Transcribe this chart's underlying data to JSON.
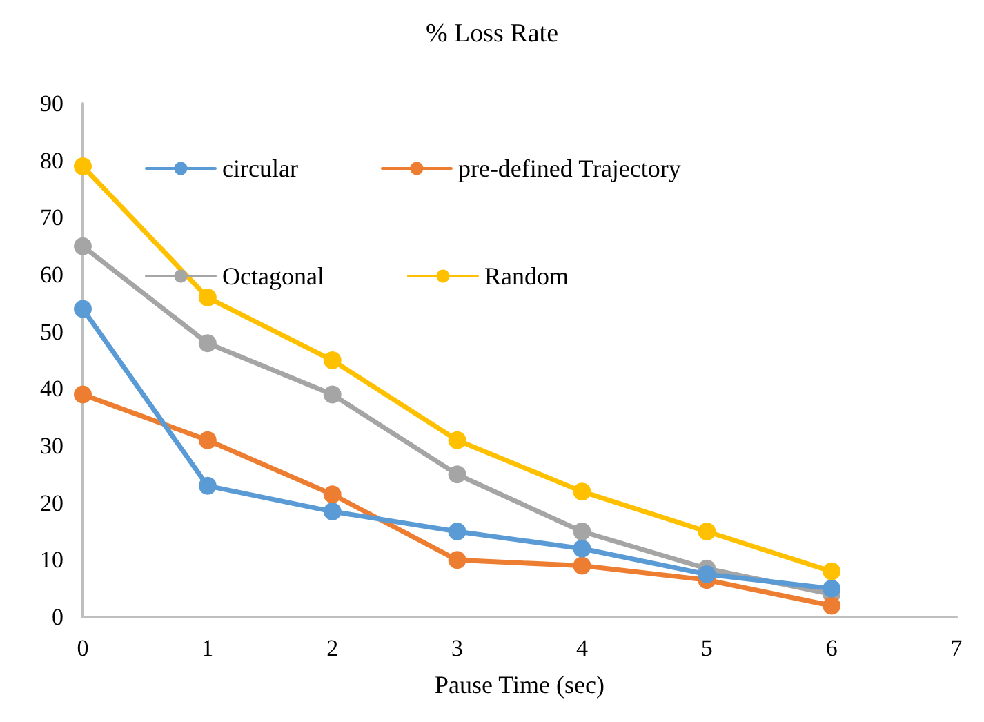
{
  "chart_data": {
    "type": "line",
    "title": "% Loss Rate",
    "xlabel": "Pause Time (sec)",
    "x": [
      0,
      1,
      2,
      3,
      4,
      5,
      6
    ],
    "xlim": [
      0,
      7
    ],
    "xticks": [
      0,
      1,
      2,
      3,
      4,
      5,
      6,
      7
    ],
    "ylim": [
      0,
      90
    ],
    "yticks": [
      0,
      10,
      20,
      30,
      40,
      50,
      60,
      70,
      80,
      90
    ],
    "grid": false,
    "legend": "top",
    "marker": "circle",
    "line_style": "solid",
    "series": [
      {
        "name": "circular",
        "color": "#5b9bd5",
        "values": [
          54,
          23,
          18.5,
          15,
          12,
          7.5,
          5
        ]
      },
      {
        "name": "pre-defined Trajectory",
        "color": "#ed7d31",
        "values": [
          39,
          31,
          21.5,
          10,
          9,
          6.5,
          2
        ]
      },
      {
        "name": "Octagonal",
        "color": "#a5a5a5",
        "values": [
          65,
          48,
          39,
          25,
          15,
          8.5,
          4
        ]
      },
      {
        "name": "Random",
        "color": "#ffc000",
        "values": [
          79,
          56,
          45,
          31,
          22,
          15,
          8
        ]
      }
    ]
  }
}
